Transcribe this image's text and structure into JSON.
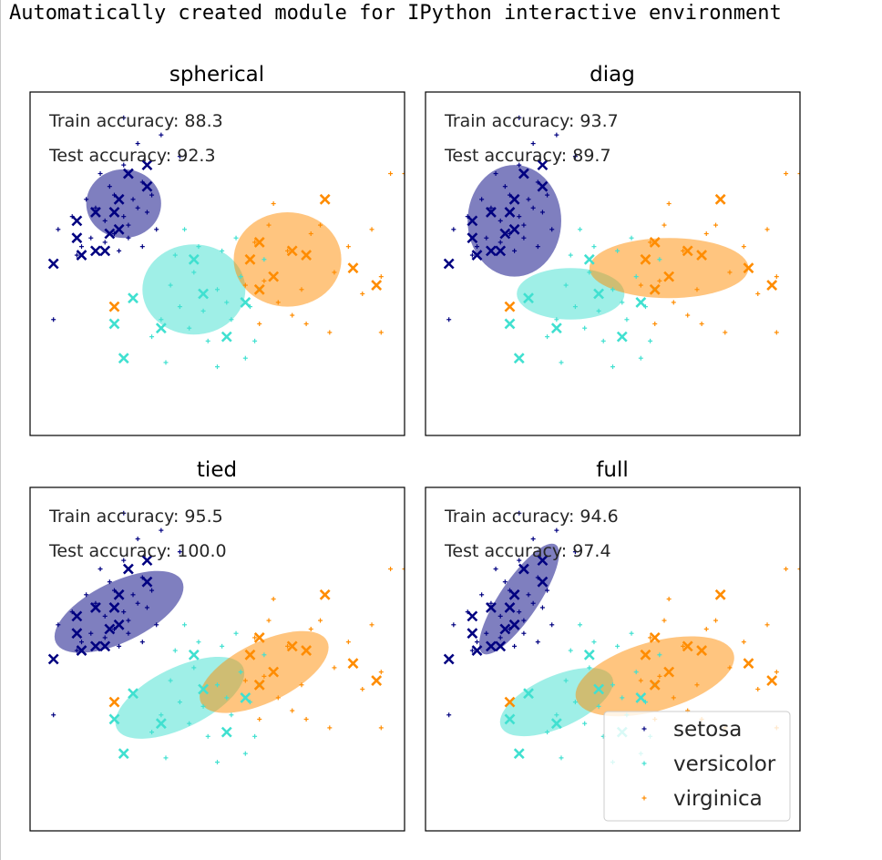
{
  "header": {
    "text": "Automatically created module for IPython interactive environment"
  },
  "colors": {
    "setosa": "#000080",
    "versicolor": "#40e0d0",
    "virginica": "#ff8c00"
  },
  "legend": {
    "placement": "lower-right",
    "entries": [
      "setosa",
      "versicolor",
      "virginica"
    ]
  },
  "chart_data": [
    {
      "type": "scatter",
      "title": "spherical",
      "train_accuracy_label": "Train accuracy: 88.3",
      "test_accuracy_label": "Test accuracy: 92.3",
      "xlim": [
        -4,
        4
      ],
      "ylim": [
        -4,
        4
      ],
      "gaussians": [
        {
          "cls": "setosa",
          "mean": [
            -2.0,
            1.4
          ],
          "width": 1.6,
          "height": 1.6,
          "angle": 0
        },
        {
          "cls": "versicolor",
          "mean": [
            -0.5,
            -0.6
          ],
          "width": 2.2,
          "height": 2.1,
          "angle": 0
        },
        {
          "cls": "virginica",
          "mean": [
            1.5,
            0.1
          ],
          "width": 2.3,
          "height": 2.2,
          "angle": 0
        }
      ]
    },
    {
      "type": "scatter",
      "title": "diag",
      "train_accuracy_label": "Train accuracy: 93.7",
      "test_accuracy_label": "Test accuracy: 89.7",
      "xlim": [
        -4,
        4
      ],
      "ylim": [
        -4,
        4
      ],
      "gaussians": [
        {
          "cls": "setosa",
          "mean": [
            -2.1,
            1.0
          ],
          "width": 2.0,
          "height": 2.6,
          "angle": 0
        },
        {
          "cls": "versicolor",
          "mean": [
            -0.9,
            -0.7
          ],
          "width": 2.3,
          "height": 1.2,
          "angle": 0
        },
        {
          "cls": "virginica",
          "mean": [
            1.2,
            -0.1
          ],
          "width": 3.4,
          "height": 1.4,
          "angle": 0
        }
      ]
    },
    {
      "type": "scatter",
      "title": "tied",
      "train_accuracy_label": "Train accuracy: 95.5",
      "test_accuracy_label": "Test accuracy: 100.0",
      "xlim": [
        -4,
        4
      ],
      "ylim": [
        -4,
        4
      ],
      "gaussians": [
        {
          "cls": "setosa",
          "mean": [
            -2.1,
            1.1
          ],
          "width": 3.0,
          "height": 1.4,
          "angle": -26
        },
        {
          "cls": "versicolor",
          "mean": [
            -0.8,
            -0.9
          ],
          "width": 3.0,
          "height": 1.4,
          "angle": -26
        },
        {
          "cls": "virginica",
          "mean": [
            1.0,
            -0.3
          ],
          "width": 3.0,
          "height": 1.4,
          "angle": -26
        }
      ]
    },
    {
      "type": "scatter",
      "title": "full",
      "train_accuracy_label": "Train accuracy: 94.6",
      "test_accuracy_label": "Test accuracy: 97.4",
      "xlim": [
        -4,
        4
      ],
      "ylim": [
        -4,
        4
      ],
      "gaussians": [
        {
          "cls": "setosa",
          "mean": [
            -2.0,
            1.4
          ],
          "width": 2.8,
          "height": 0.9,
          "angle": -56
        },
        {
          "cls": "versicolor",
          "mean": [
            -1.2,
            -1.0
          ],
          "width": 2.6,
          "height": 1.2,
          "angle": -24
        },
        {
          "cls": "virginica",
          "mean": [
            0.9,
            -0.4
          ],
          "width": 3.5,
          "height": 1.6,
          "angle": -16
        }
      ]
    }
  ],
  "points": {
    "train": {
      "setosa": [
        [
          -2.0,
          2.3
        ],
        [
          -2.2,
          1.6
        ],
        [
          -2.6,
          1.3
        ],
        [
          -1.8,
          1.5
        ],
        [
          -1.5,
          1.2
        ],
        [
          -2.4,
          1.0
        ],
        [
          -1.9,
          0.9
        ],
        [
          -2.7,
          0.6
        ],
        [
          -2.2,
          0.7
        ],
        [
          -1.6,
          1.9
        ],
        [
          -2.0,
          1.1
        ],
        [
          -1.7,
          1.3
        ],
        [
          -3.1,
          1.1
        ],
        [
          -3.4,
          0.8
        ],
        [
          -2.5,
          2.1
        ],
        [
          -1.4,
          1.6
        ],
        [
          -2.3,
          1.8
        ],
        [
          -2.9,
          0.4
        ],
        [
          -1.7,
          2.8
        ],
        [
          -1.2,
          3.0
        ],
        [
          -2.0,
          3.4
        ],
        [
          -2.4,
          0.5
        ],
        [
          -3.0,
          0.2
        ],
        [
          -2.1,
          0.3
        ],
        [
          -3.5,
          -1.3
        ],
        [
          -0.8,
          2.5
        ],
        [
          -1.3,
          0.8
        ],
        [
          -2.8,
          1.5
        ],
        [
          -1.9,
          0.6
        ],
        [
          -1.6,
          0.4
        ]
      ],
      "versicolor": [
        [
          -0.5,
          -0.2
        ],
        [
          0.0,
          -0.6
        ],
        [
          -0.8,
          -1.0
        ],
        [
          -0.3,
          -1.1
        ],
        [
          0.3,
          -1.3
        ],
        [
          -1.0,
          -0.5
        ],
        [
          0.5,
          -0.3
        ],
        [
          -1.2,
          -1.3
        ],
        [
          0.2,
          -0.9
        ],
        [
          -0.6,
          -1.5
        ],
        [
          0.7,
          -1.0
        ],
        [
          -0.9,
          0.2
        ],
        [
          0.1,
          0.3
        ],
        [
          -0.2,
          -1.8
        ],
        [
          0.8,
          -1.8
        ],
        [
          -1.4,
          -1.7
        ],
        [
          0.4,
          0.6
        ],
        [
          -0.7,
          0.8
        ],
        [
          0.6,
          -2.2
        ],
        [
          -1.1,
          -2.3
        ],
        [
          0.9,
          -0.6
        ],
        [
          0.0,
          -2.4
        ],
        [
          -0.4,
          0.4
        ],
        [
          1.0,
          0.1
        ]
      ],
      "virginica": [
        [
          1.5,
          0.3
        ],
        [
          1.0,
          -0.4
        ],
        [
          2.0,
          0.7
        ],
        [
          1.3,
          -0.9
        ],
        [
          2.5,
          -0.2
        ],
        [
          0.8,
          0.5
        ],
        [
          1.8,
          -0.6
        ],
        [
          2.2,
          0.9
        ],
        [
          1.1,
          0.9
        ],
        [
          3.1,
          -0.7
        ],
        [
          1.6,
          -1.2
        ],
        [
          3.5,
          -0.3
        ],
        [
          0.6,
          -0.5
        ],
        [
          2.8,
          0.4
        ],
        [
          1.9,
          -1.4
        ],
        [
          3.7,
          2.1
        ],
        [
          4.0,
          2.1
        ],
        [
          3.5,
          -1.6
        ],
        [
          2.4,
          -1.6
        ],
        [
          1.2,
          1.4
        ],
        [
          3.3,
          0.8
        ],
        [
          0.9,
          -1.4
        ]
      ]
    },
    "test": {
      "setosa": [
        [
          -1.9,
          2.1
        ],
        [
          -1.5,
          2.3
        ],
        [
          -1.5,
          1.8
        ],
        [
          -2.1,
          1.5
        ],
        [
          -2.2,
          1.2
        ],
        [
          -2.6,
          1.2
        ],
        [
          -3.0,
          1.0
        ],
        [
          -3.0,
          0.6
        ],
        [
          -2.3,
          0.7
        ],
        [
          -2.6,
          0.3
        ],
        [
          -2.4,
          0.3
        ],
        [
          -3.5,
          0.0
        ],
        [
          -2.9,
          0.2
        ],
        [
          -2.1,
          0.8
        ]
      ],
      "versicolor": [
        [
          -0.5,
          0.1
        ],
        [
          0.6,
          -0.9
        ],
        [
          -1.8,
          -0.8
        ],
        [
          -0.3,
          -0.7
        ],
        [
          -1.2,
          -1.5
        ],
        [
          0.2,
          -1.7
        ],
        [
          -2.2,
          -1.4
        ],
        [
          -2.0,
          -2.2
        ]
      ],
      "virginica": [
        [
          2.3,
          1.5
        ],
        [
          0.9,
          0.5
        ],
        [
          2.9,
          -0.1
        ],
        [
          1.6,
          0.3
        ],
        [
          3.4,
          -0.5
        ],
        [
          1.2,
          -0.3
        ],
        [
          0.7,
          0.1
        ],
        [
          1.9,
          0.2
        ],
        [
          0.9,
          -0.6
        ],
        [
          -2.2,
          -1.0
        ]
      ]
    }
  }
}
